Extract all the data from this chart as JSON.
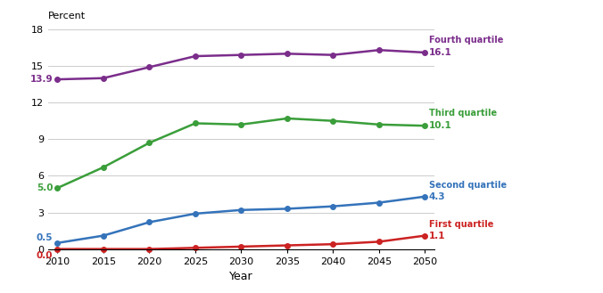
{
  "years": [
    2010,
    2015,
    2020,
    2025,
    2030,
    2035,
    2040,
    2045,
    2050
  ],
  "fourth_quartile": [
    13.9,
    14.0,
    14.9,
    15.8,
    15.9,
    16.0,
    15.9,
    16.3,
    16.1
  ],
  "third_quartile": [
    5.0,
    6.7,
    8.7,
    10.3,
    10.2,
    10.7,
    10.5,
    10.2,
    10.1
  ],
  "second_quartile": [
    0.5,
    1.1,
    2.2,
    2.9,
    3.2,
    3.3,
    3.5,
    3.8,
    4.3
  ],
  "first_quartile": [
    0.0,
    0.0,
    0.0,
    0.1,
    0.2,
    0.3,
    0.4,
    0.6,
    1.1
  ],
  "colors": {
    "fourth": "#7B2D8B",
    "third": "#3A9E3A",
    "second": "#3473BA",
    "first": "#CC2222"
  },
  "labels": {
    "fourth": "Fourth quartile",
    "third": "Third quartile",
    "second": "Second quartile",
    "first": "First quartile"
  },
  "start_labels": {
    "fourth": "13.9",
    "third": "5.0",
    "second": "0.5",
    "first": "0.0"
  },
  "end_labels": {
    "fourth": "16.1",
    "third": "10.1",
    "second": "4.3",
    "first": "1.1"
  },
  "ylabel": "Percent",
  "xlabel": "Year",
  "ylim": [
    0,
    18
  ],
  "yticks": [
    0,
    3,
    6,
    9,
    12,
    15,
    18
  ],
  "xticks": [
    2010,
    2015,
    2020,
    2025,
    2030,
    2035,
    2040,
    2045,
    2050
  ],
  "background_color": "#FFFFFF",
  "grid_color": "#CCCCCC",
  "start_label_y_offsets": {
    "fourth": 0.0,
    "third": 0.0,
    "second": 0.4,
    "first": -0.5
  },
  "end_name_y_offsets": {
    "fourth": 0.9,
    "third": 0.9,
    "second": 0.9,
    "first": 0.9
  }
}
